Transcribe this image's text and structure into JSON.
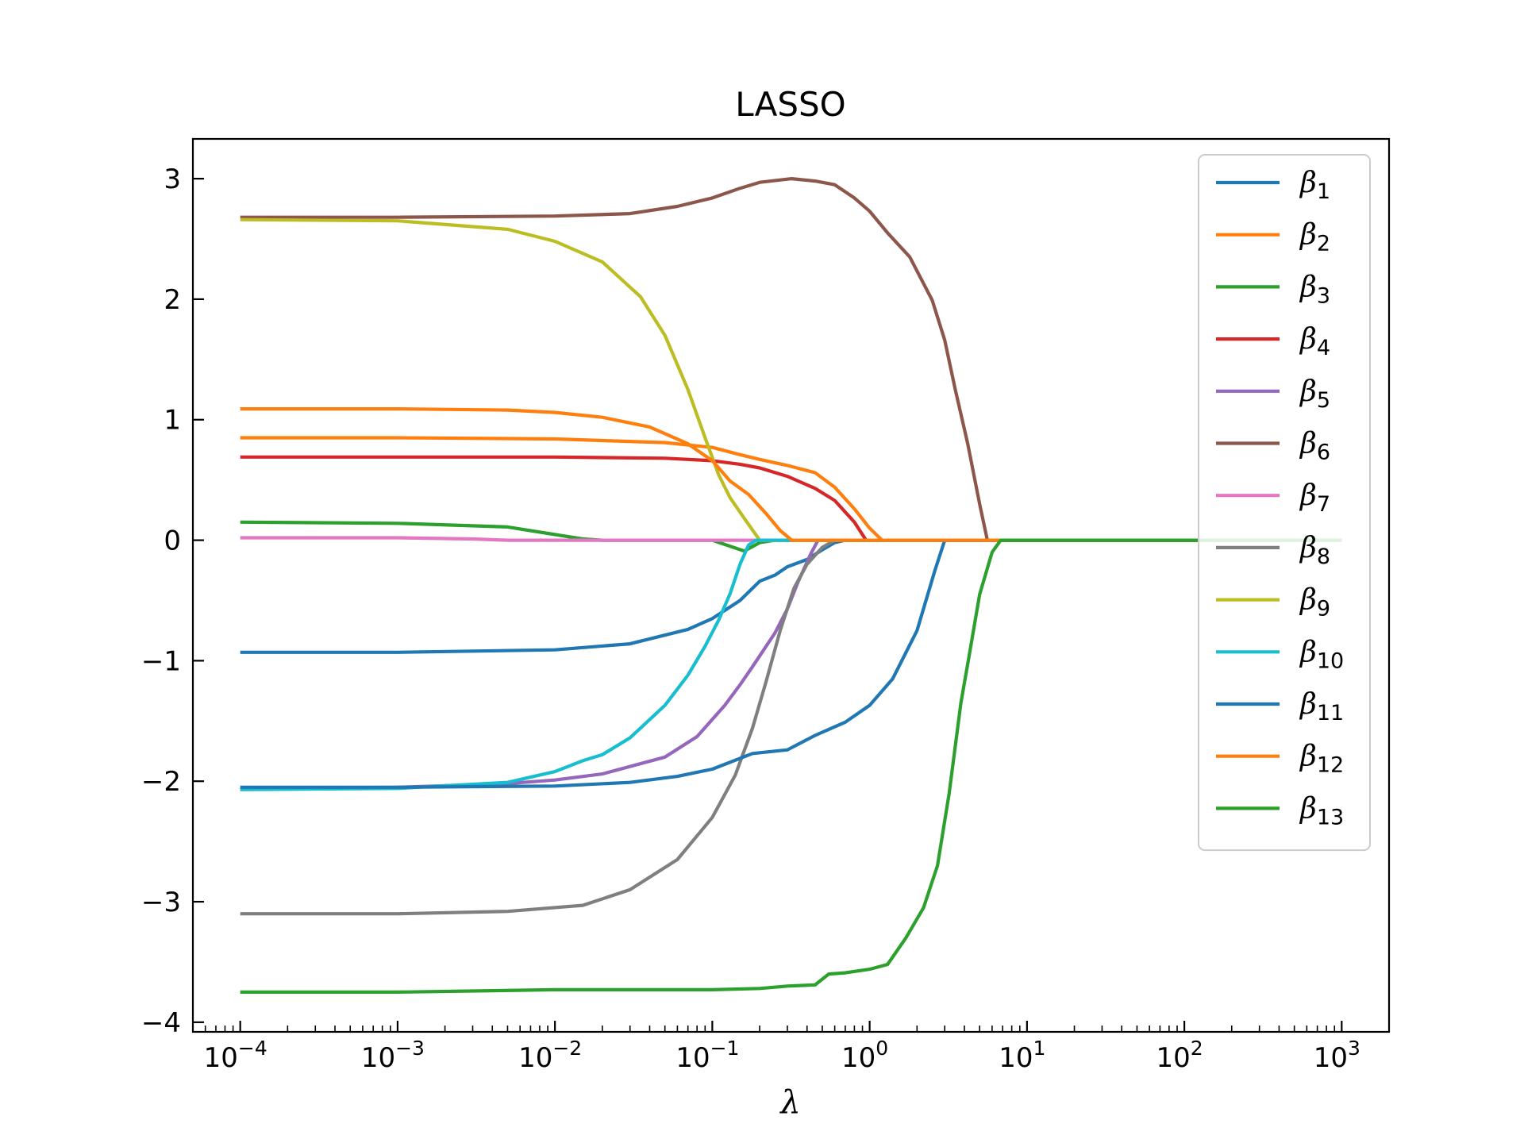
{
  "chart_data": {
    "type": "line",
    "title": "LASSO",
    "xlabel": "λ",
    "ylabel": "",
    "xscale": "log",
    "xlim": [
      5e-05,
      2000
    ],
    "ylim": [
      -4.08,
      3.33
    ],
    "xticks": [
      {
        "value": 0.0001,
        "base": "10",
        "exp": "−4"
      },
      {
        "value": 0.001,
        "base": "10",
        "exp": "−3"
      },
      {
        "value": 0.01,
        "base": "10",
        "exp": "−2"
      },
      {
        "value": 0.1,
        "base": "10",
        "exp": "−1"
      },
      {
        "value": 1,
        "base": "10",
        "exp": "0"
      },
      {
        "value": 10,
        "base": "10",
        "exp": "1"
      },
      {
        "value": 100,
        "base": "10",
        "exp": "2"
      },
      {
        "value": 1000,
        "base": "10",
        "exp": "3"
      }
    ],
    "yticks": [
      {
        "value": 3,
        "label": "3"
      },
      {
        "value": 2,
        "label": "2"
      },
      {
        "value": 1,
        "label": "1"
      },
      {
        "value": 0,
        "label": "0"
      },
      {
        "value": -1,
        "label": "−1"
      },
      {
        "value": -2,
        "label": "−2"
      },
      {
        "value": -3,
        "label": "−3"
      },
      {
        "value": -4,
        "label": "−4"
      }
    ],
    "grid": false,
    "legend_position": "top-right",
    "series": [
      {
        "name": "β",
        "sub": "1",
        "color": "#1f77b4",
        "points": [
          [
            0.0001,
            -0.93
          ],
          [
            0.001,
            -0.93
          ],
          [
            0.01,
            -0.91
          ],
          [
            0.03,
            -0.86
          ],
          [
            0.07,
            -0.74
          ],
          [
            0.1,
            -0.65
          ],
          [
            0.15,
            -0.5
          ],
          [
            0.2,
            -0.34
          ],
          [
            0.25,
            -0.29
          ],
          [
            0.3,
            -0.22
          ],
          [
            0.4,
            -0.16
          ],
          [
            0.5,
            -0.08
          ],
          [
            0.6,
            -0.02
          ],
          [
            0.7,
            0
          ],
          [
            1000,
            0
          ]
        ]
      },
      {
        "name": "β",
        "sub": "2",
        "color": "#ff7f0e",
        "points": [
          [
            0.0001,
            0.85
          ],
          [
            0.001,
            0.85
          ],
          [
            0.01,
            0.84
          ],
          [
            0.05,
            0.81
          ],
          [
            0.1,
            0.77
          ],
          [
            0.15,
            0.71
          ],
          [
            0.2,
            0.67
          ],
          [
            0.3,
            0.62
          ],
          [
            0.45,
            0.56
          ],
          [
            0.6,
            0.44
          ],
          [
            0.8,
            0.26
          ],
          [
            1.0,
            0.1
          ],
          [
            1.2,
            0
          ],
          [
            1000,
            0
          ]
        ]
      },
      {
        "name": "β",
        "sub": "3",
        "color": "#2ca02c",
        "points": [
          [
            0.0001,
            0.15
          ],
          [
            0.001,
            0.14
          ],
          [
            0.005,
            0.11
          ],
          [
            0.015,
            0.01
          ],
          [
            0.02,
            0
          ],
          [
            0.1,
            0
          ],
          [
            0.16,
            -0.09
          ],
          [
            0.2,
            -0.02
          ],
          [
            0.25,
            0
          ],
          [
            1000,
            0
          ]
        ]
      },
      {
        "name": "β",
        "sub": "4",
        "color": "#d62728",
        "points": [
          [
            0.0001,
            0.69
          ],
          [
            0.001,
            0.69
          ],
          [
            0.01,
            0.69
          ],
          [
            0.05,
            0.68
          ],
          [
            0.1,
            0.66
          ],
          [
            0.15,
            0.63
          ],
          [
            0.2,
            0.6
          ],
          [
            0.3,
            0.53
          ],
          [
            0.45,
            0.43
          ],
          [
            0.6,
            0.33
          ],
          [
            0.8,
            0.15
          ],
          [
            0.95,
            0
          ],
          [
            1000,
            0
          ]
        ]
      },
      {
        "name": "β",
        "sub": "5",
        "color": "#9467bd",
        "points": [
          [
            0.0001,
            -2.06
          ],
          [
            0.001,
            -2.05
          ],
          [
            0.005,
            -2.02
          ],
          [
            0.01,
            -1.99
          ],
          [
            0.02,
            -1.94
          ],
          [
            0.05,
            -1.8
          ],
          [
            0.08,
            -1.63
          ],
          [
            0.12,
            -1.37
          ],
          [
            0.15,
            -1.2
          ],
          [
            0.18,
            -1.05
          ],
          [
            0.25,
            -0.77
          ],
          [
            0.3,
            -0.57
          ],
          [
            0.35,
            -0.35
          ],
          [
            0.42,
            -0.12
          ],
          [
            0.47,
            0
          ],
          [
            1000,
            0
          ]
        ]
      },
      {
        "name": "β",
        "sub": "6",
        "color": "#8c564b",
        "points": [
          [
            0.0001,
            2.68
          ],
          [
            0.001,
            2.68
          ],
          [
            0.01,
            2.69
          ],
          [
            0.03,
            2.71
          ],
          [
            0.06,
            2.77
          ],
          [
            0.1,
            2.84
          ],
          [
            0.15,
            2.92
          ],
          [
            0.2,
            2.97
          ],
          [
            0.32,
            3.0
          ],
          [
            0.45,
            2.98
          ],
          [
            0.6,
            2.95
          ],
          [
            0.8,
            2.84
          ],
          [
            1.0,
            2.73
          ],
          [
            1.3,
            2.55
          ],
          [
            1.8,
            2.35
          ],
          [
            2.5,
            1.99
          ],
          [
            3.0,
            1.66
          ],
          [
            3.5,
            1.25
          ],
          [
            4.2,
            0.8
          ],
          [
            5.0,
            0.3
          ],
          [
            5.6,
            0
          ],
          [
            1000,
            0
          ]
        ]
      },
      {
        "name": "β",
        "sub": "7",
        "color": "#e377c2",
        "points": [
          [
            0.0001,
            0.02
          ],
          [
            0.001,
            0.02
          ],
          [
            0.003,
            0.01
          ],
          [
            0.005,
            0
          ],
          [
            1000,
            0
          ]
        ]
      },
      {
        "name": "β",
        "sub": "8",
        "color": "#7f7f7f",
        "points": [
          [
            0.0001,
            -3.1
          ],
          [
            0.001,
            -3.1
          ],
          [
            0.005,
            -3.08
          ],
          [
            0.015,
            -3.03
          ],
          [
            0.03,
            -2.9
          ],
          [
            0.06,
            -2.65
          ],
          [
            0.1,
            -2.3
          ],
          [
            0.14,
            -1.95
          ],
          [
            0.18,
            -1.56
          ],
          [
            0.22,
            -1.17
          ],
          [
            0.27,
            -0.75
          ],
          [
            0.33,
            -0.4
          ],
          [
            0.4,
            -0.2
          ],
          [
            0.5,
            -0.06
          ],
          [
            0.6,
            0
          ],
          [
            1000,
            0
          ]
        ]
      },
      {
        "name": "β",
        "sub": "9",
        "color": "#bcbd22",
        "points": [
          [
            0.0001,
            2.66
          ],
          [
            0.001,
            2.65
          ],
          [
            0.005,
            2.58
          ],
          [
            0.01,
            2.48
          ],
          [
            0.02,
            2.31
          ],
          [
            0.035,
            2.02
          ],
          [
            0.05,
            1.7
          ],
          [
            0.07,
            1.25
          ],
          [
            0.09,
            0.85
          ],
          [
            0.11,
            0.54
          ],
          [
            0.13,
            0.35
          ],
          [
            0.16,
            0.18
          ],
          [
            0.2,
            0
          ],
          [
            1000,
            0
          ]
        ]
      },
      {
        "name": "β",
        "sub": "10",
        "color": "#17becf",
        "points": [
          [
            0.0001,
            -2.07
          ],
          [
            0.001,
            -2.06
          ],
          [
            0.005,
            -2.01
          ],
          [
            0.01,
            -1.92
          ],
          [
            0.015,
            -1.83
          ],
          [
            0.02,
            -1.78
          ],
          [
            0.03,
            -1.64
          ],
          [
            0.05,
            -1.37
          ],
          [
            0.07,
            -1.12
          ],
          [
            0.09,
            -0.88
          ],
          [
            0.11,
            -0.66
          ],
          [
            0.13,
            -0.44
          ],
          [
            0.15,
            -0.2
          ],
          [
            0.17,
            -0.04
          ],
          [
            0.19,
            0
          ],
          [
            1000,
            0
          ]
        ]
      },
      {
        "name": "β",
        "sub": "11",
        "color": "#1f77b4",
        "points": [
          [
            0.0001,
            -2.05
          ],
          [
            0.001,
            -2.05
          ],
          [
            0.01,
            -2.04
          ],
          [
            0.03,
            -2.01
          ],
          [
            0.06,
            -1.96
          ],
          [
            0.1,
            -1.9
          ],
          [
            0.18,
            -1.77
          ],
          [
            0.3,
            -1.74
          ],
          [
            0.45,
            -1.62
          ],
          [
            0.7,
            -1.51
          ],
          [
            1.0,
            -1.37
          ],
          [
            1.4,
            -1.15
          ],
          [
            2.0,
            -0.75
          ],
          [
            2.6,
            -0.25
          ],
          [
            3.0,
            0
          ],
          [
            1000,
            0
          ]
        ]
      },
      {
        "name": "β",
        "sub": "12",
        "color": "#ff7f0e",
        "points": [
          [
            0.0001,
            1.09
          ],
          [
            0.001,
            1.09
          ],
          [
            0.005,
            1.08
          ],
          [
            0.01,
            1.06
          ],
          [
            0.02,
            1.02
          ],
          [
            0.04,
            0.94
          ],
          [
            0.07,
            0.8
          ],
          [
            0.1,
            0.66
          ],
          [
            0.13,
            0.49
          ],
          [
            0.17,
            0.38
          ],
          [
            0.22,
            0.22
          ],
          [
            0.27,
            0.08
          ],
          [
            0.32,
            0
          ],
          [
            1000,
            0
          ]
        ]
      },
      {
        "name": "β",
        "sub": "13",
        "color": "#2ca02c",
        "points": [
          [
            0.0001,
            -3.75
          ],
          [
            0.001,
            -3.75
          ],
          [
            0.01,
            -3.73
          ],
          [
            0.1,
            -3.73
          ],
          [
            0.2,
            -3.72
          ],
          [
            0.3,
            -3.7
          ],
          [
            0.45,
            -3.69
          ],
          [
            0.55,
            -3.6
          ],
          [
            0.7,
            -3.59
          ],
          [
            1.0,
            -3.56
          ],
          [
            1.3,
            -3.52
          ],
          [
            1.7,
            -3.3
          ],
          [
            2.2,
            -3.05
          ],
          [
            2.7,
            -2.7
          ],
          [
            3.2,
            -2.1
          ],
          [
            3.8,
            -1.35
          ],
          [
            4.3,
            -0.95
          ],
          [
            5.0,
            -0.45
          ],
          [
            6.0,
            -0.1
          ],
          [
            6.8,
            0
          ],
          [
            1000,
            0
          ]
        ]
      }
    ]
  }
}
